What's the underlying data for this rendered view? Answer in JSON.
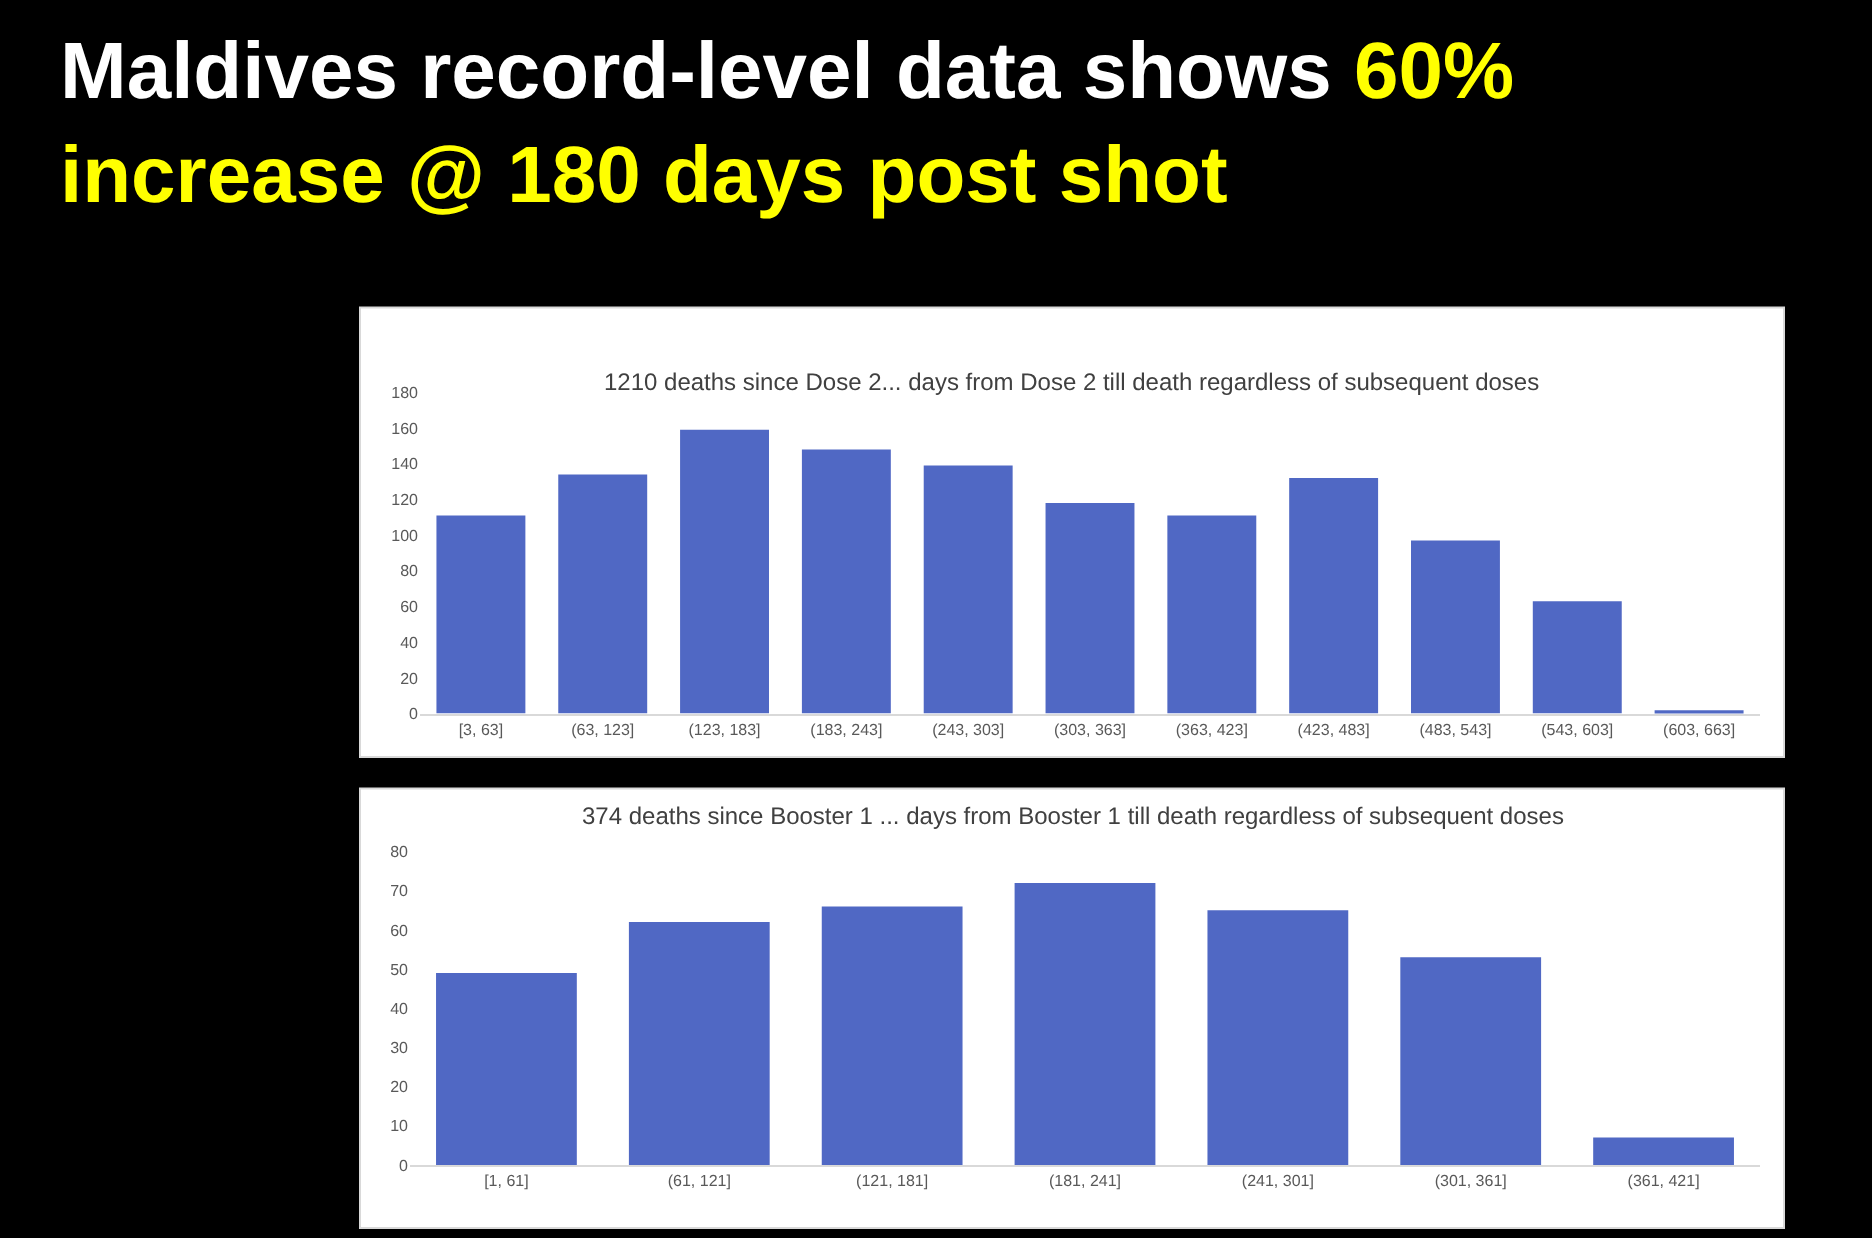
{
  "chart_data": [
    {
      "type": "bar",
      "title": "1210 deaths since Dose 2... days from Dose 2 till death regardless of subsequent doses",
      "annotations": [
        "Maldives record-level data shows",
        "60% increase @ 180 days post shot"
      ],
      "categories": [
        "[3, 63]",
        "(63, 123]",
        "(123, 183]",
        "(183, 243]",
        "(243, 303]",
        "(303, 363]",
        "(363, 423]",
        "(423, 483]",
        "(483, 543]",
        "(543, 603]",
        "(603, 663]"
      ],
      "values": [
        111,
        134,
        159,
        148,
        139,
        118,
        111,
        132,
        97,
        63,
        1
      ],
      "color": "#5068c4",
      "ylim": [
        0,
        180
      ],
      "yticks": [
        0,
        20,
        40,
        60,
        80,
        100,
        120,
        140,
        160,
        180
      ],
      "grid": false
    },
    {
      "type": "bar",
      "title": "374 deaths since Booster 1 ... days from Booster 1 till death regardless of subsequent doses",
      "categories": [
        "[1, 61]",
        "(61, 121]",
        "(121, 181]",
        "(181, 241]",
        "(241, 301]",
        "(301, 361]",
        "(361, 421]"
      ],
      "values": [
        49,
        62,
        66,
        72,
        65,
        53,
        7
      ],
      "color": "#5068c4",
      "ylim": [
        0,
        80
      ],
      "yticks": [
        0,
        10,
        20,
        30,
        40,
        50,
        60,
        70,
        80
      ],
      "grid": false
    }
  ]
}
